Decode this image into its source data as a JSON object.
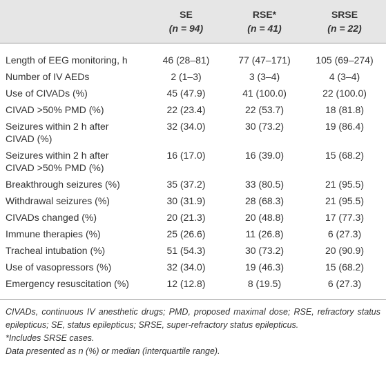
{
  "table": {
    "columns": [
      {
        "name": "SE",
        "count": "(n = 94)"
      },
      {
        "name": "RSE*",
        "count": "(n = 41)"
      },
      {
        "name": "SRSE",
        "count": "(n = 22)"
      }
    ],
    "rows": [
      {
        "label": [
          "Length of EEG monitoring, h"
        ],
        "cells": [
          "46 (28–81)",
          "77 (47–171)",
          "105 (69–274)"
        ]
      },
      {
        "label": [
          "Number of IV AEDs"
        ],
        "cells": [
          "2 (1–3)",
          "3 (3–4)",
          "4 (3–4)"
        ]
      },
      {
        "label": [
          "Use of CIVADs (%)"
        ],
        "cells": [
          "45 (47.9)",
          "41 (100.0)",
          "22 (100.0)"
        ]
      },
      {
        "label": [
          "CIVAD >50% PMD (%)"
        ],
        "cells": [
          "22 (23.4)",
          "22 (53.7)",
          "18 (81.8)"
        ]
      },
      {
        "label": [
          "Seizures within 2 h after",
          "CIVAD (%)"
        ],
        "cells": [
          "32 (34.0)",
          "30 (73.2)",
          "19 (86.4)"
        ]
      },
      {
        "label": [
          "Seizures within 2 h after",
          "CIVAD >50% PMD (%)"
        ],
        "cells": [
          "16 (17.0)",
          "16 (39.0)",
          "15 (68.2)"
        ]
      },
      {
        "label": [
          "Breakthrough seizures (%)"
        ],
        "cells": [
          "35 (37.2)",
          "33 (80.5)",
          "21 (95.5)"
        ]
      },
      {
        "label": [
          "Withdrawal seizures (%)"
        ],
        "cells": [
          "30 (31.9)",
          "28 (68.3)",
          "21 (95.5)"
        ]
      },
      {
        "label": [
          "CIVADs changed (%)"
        ],
        "cells": [
          "20 (21.3)",
          "20 (48.8)",
          "17 (77.3)"
        ]
      },
      {
        "label": [
          "Immune therapies (%)"
        ],
        "cells": [
          "25 (26.6)",
          "11 (26.8)",
          "6 (27.3)"
        ]
      },
      {
        "label": [
          "Tracheal intubation (%)"
        ],
        "cells": [
          "51 (54.3)",
          "30 (73.2)",
          "20 (90.9)"
        ]
      },
      {
        "label": [
          "Use of vasopressors (%)"
        ],
        "cells": [
          "32 (34.0)",
          "19 (46.3)",
          "15 (68.2)"
        ]
      },
      {
        "label": [
          "Emergency resuscitation (%)"
        ],
        "cells": [
          "12 (12.8)",
          "8 (19.5)",
          "6 (27.3)"
        ]
      }
    ]
  },
  "footnotes": [
    "CIVADs, continuous IV anesthetic drugs; PMD, proposed maximal dose; RSE, refractory status epilepticus; SE, status epilepticus; SRSE, super-refractory status epilepticus.",
    "*Includes SRSE cases.",
    "Data presented as n (%) or median (interquartile range)."
  ]
}
